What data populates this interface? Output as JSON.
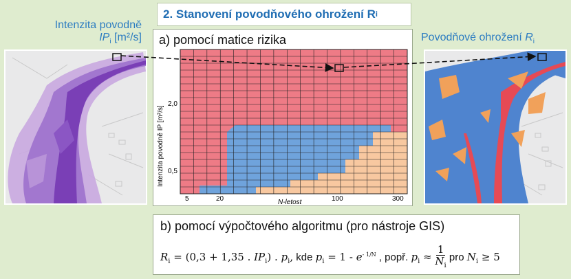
{
  "title": {
    "text": "2. Stanovení povodňového ohrožení R",
    "sub": "i"
  },
  "left_label": {
    "line1": "Intenzita povodně",
    "line2_var": "IP",
    "line2_sub": "i",
    "line2_unit": " [m²/s]"
  },
  "right_label": {
    "text": "Povodňové ohrožení ",
    "var": "R",
    "sub": "i"
  },
  "panel_a": {
    "title": "a) pomocí matice rizika"
  },
  "chart": {
    "ylabel": "Intenzita povodně IP [m²/s]",
    "xlabel": "N-letost",
    "y_ticks": [
      "2,0",
      "0,5"
    ],
    "x_ticks": [
      "5",
      "20",
      "100",
      "300"
    ]
  },
  "panel_b": {
    "title": "b) pomocí výpočtového algoritmu (pro nástroje GIS)"
  },
  "formula": {
    "r": "R",
    "r_sub": "i",
    "eq1": " = (0,3 + 1,35 . ",
    "ip": "IP",
    "ip_sub": "i",
    "eq2": ") . ",
    "p1": "p",
    "p1_sub": "i",
    "comma": ",",
    "kde": "  kde ",
    "p2": "p",
    "p2_sub": "i",
    "eq3": " = 1 - ",
    "e": "e",
    "exp": "- 1/N",
    "popr": " , popř.  ",
    "p3": "p",
    "p3_sub": "i",
    "approx": " ≈ ",
    "frac_num": "1",
    "frac_den": "N",
    "frac_den_sub": "i",
    "pro": "  pro ",
    "n": "N",
    "n_sub": "i",
    "ge": " ≥ 5"
  },
  "colors": {
    "high": "#ee7b86",
    "medium": "#6fa3dc",
    "low": "#f8c8a0",
    "accent": "#1f6db3"
  }
}
